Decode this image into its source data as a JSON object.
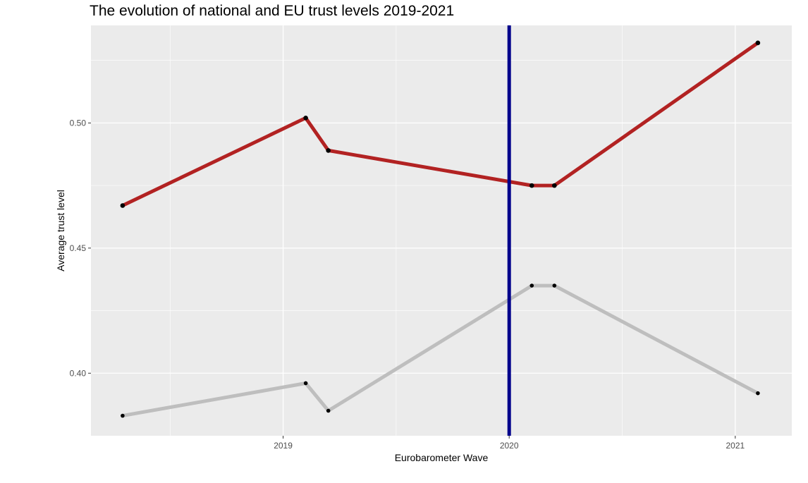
{
  "chart_data": {
    "type": "line",
    "title": "The evolution of national and EU trust levels 2019-2021",
    "xlabel": "Eurobarometer Wave",
    "ylabel": "Average trust level",
    "xlim": [
      2018.15,
      2021.25
    ],
    "ylim": [
      0.375,
      0.539
    ],
    "x_ticks": [
      2019,
      2020,
      2021
    ],
    "x_tick_labels": [
      "2019",
      "2020",
      "2021"
    ],
    "y_ticks": [
      0.4,
      0.45,
      0.5
    ],
    "y_tick_labels": [
      "0.40",
      "0.45",
      "0.50"
    ],
    "grid": true,
    "legend": "none",
    "reference_line": {
      "x": 2020,
      "color": "#00008B"
    },
    "series": [
      {
        "color": "#B22222",
        "x": [
          2018.29,
          2019.1,
          2019.2,
          2020.1,
          2020.2,
          2021.1
        ],
        "y": [
          0.467,
          0.502,
          0.489,
          0.475,
          0.475,
          0.532
        ]
      },
      {
        "color": "#BEBEBE",
        "x": [
          2018.29,
          2019.1,
          2019.2,
          2020.1,
          2020.2,
          2021.1
        ],
        "y": [
          0.383,
          0.396,
          0.385,
          0.435,
          0.435,
          0.392
        ]
      }
    ]
  }
}
